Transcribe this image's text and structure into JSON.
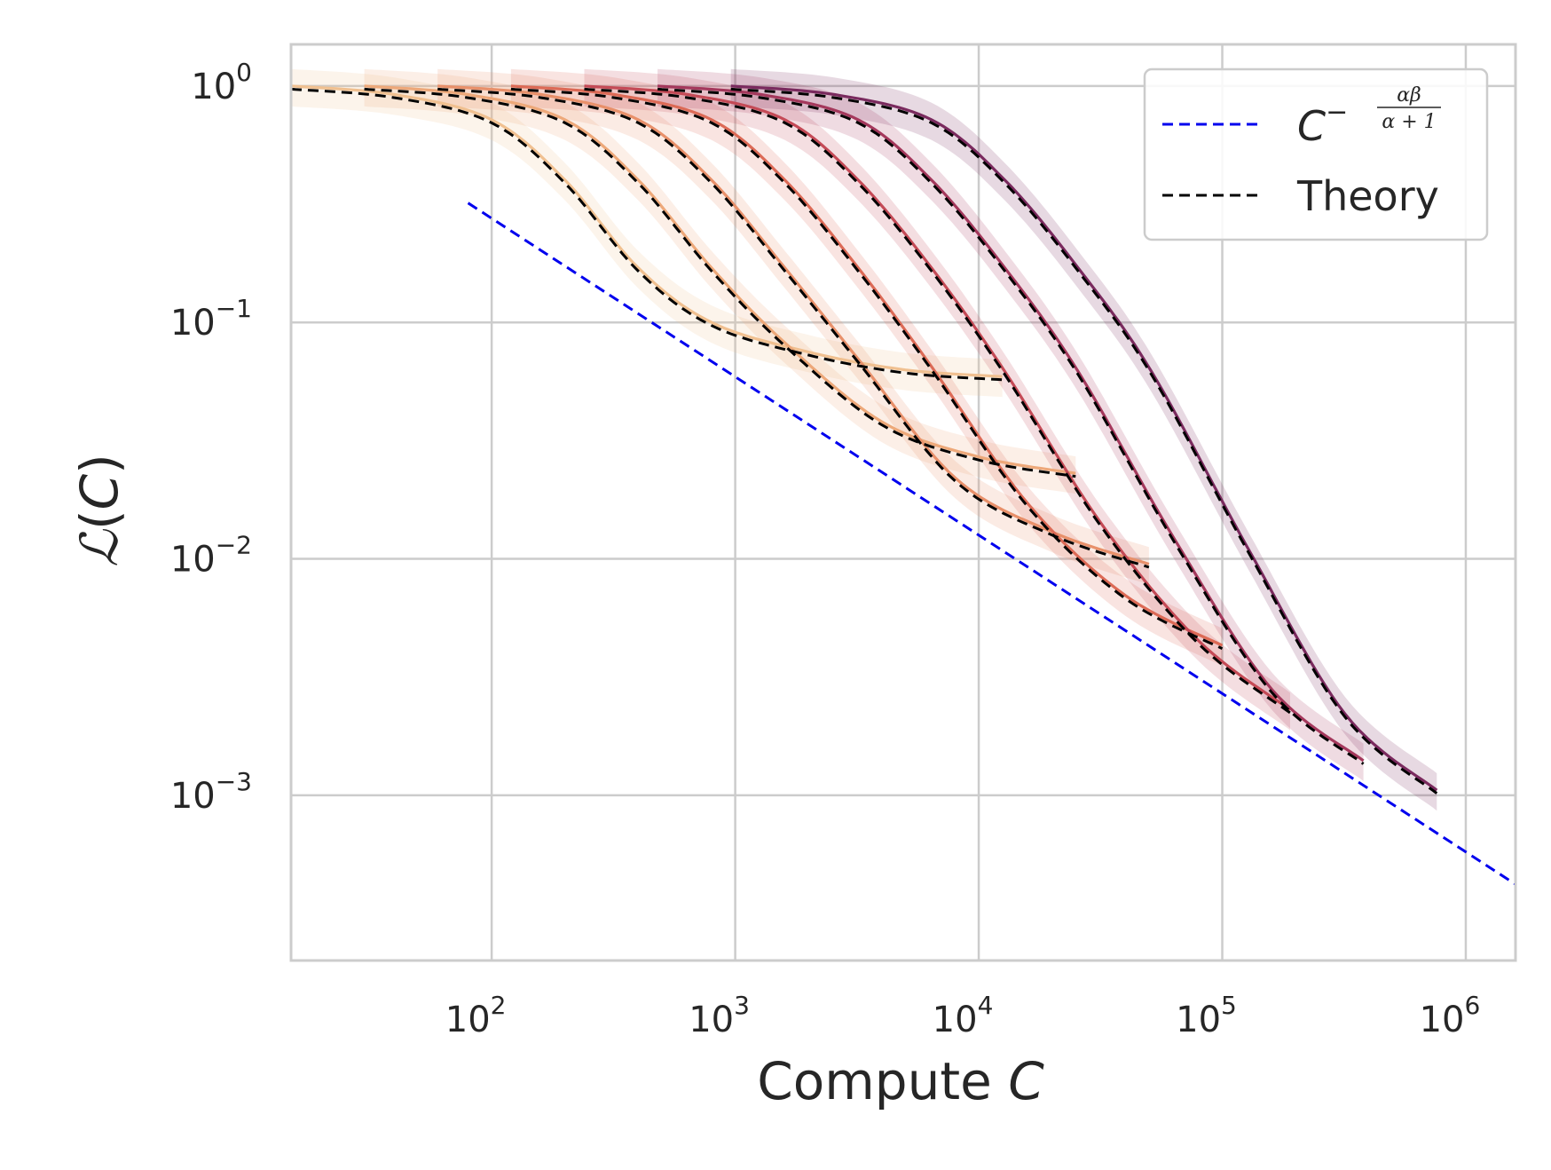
{
  "chart_data": {
    "type": "line",
    "x_scale": "log",
    "y_scale": "log",
    "xlabel": "Compute C",
    "ylabel": "ℒ(C)",
    "xlim": [
      15,
      1600000
    ],
    "ylim": [
      0.0002,
      1.5
    ],
    "grid": true,
    "legend_position": "top-right",
    "x_ticks": [
      {
        "value": 100,
        "base": "10",
        "exp": "2"
      },
      {
        "value": 1000,
        "base": "10",
        "exp": "3"
      },
      {
        "value": 10000,
        "base": "10",
        "exp": "4"
      },
      {
        "value": 100000,
        "base": "10",
        "exp": "5"
      },
      {
        "value": 1000000,
        "base": "10",
        "exp": "6"
      }
    ],
    "y_ticks": [
      {
        "value": 1,
        "base": "10",
        "exp": "0"
      },
      {
        "value": 0.1,
        "base": "10",
        "exp": "−1"
      },
      {
        "value": 0.01,
        "base": "10",
        "exp": "−2"
      },
      {
        "value": 0.001,
        "base": "10",
        "exp": "−3"
      }
    ],
    "legend": [
      {
        "label_base": "C",
        "label_exp_sign": "−",
        "label_num": "αβ",
        "label_den": "α + 1",
        "color": "#0000ee",
        "style": "dashed"
      },
      {
        "label": "Theory",
        "color": "#000000",
        "style": "dashed"
      }
    ],
    "power_law": {
      "color": "#0000ee",
      "x_start": 80,
      "x_end": 1600000,
      "y_at_x_start": 0.32,
      "slope": -0.67
    },
    "runs": [
      {
        "color": "#f0c090",
        "points": [
          [
            15,
            1.0
          ],
          [
            40,
            0.92
          ],
          [
            100,
            0.72
          ],
          [
            200,
            0.4
          ],
          [
            400,
            0.17
          ],
          [
            800,
            0.1
          ],
          [
            2000,
            0.075
          ],
          [
            5000,
            0.063
          ],
          [
            12500,
            0.059
          ]
        ]
      },
      {
        "color": "#eda879",
        "points": [
          [
            30,
            1.0
          ],
          [
            80,
            0.92
          ],
          [
            200,
            0.72
          ],
          [
            400,
            0.4
          ],
          [
            800,
            0.17
          ],
          [
            1600,
            0.082
          ],
          [
            4000,
            0.038
          ],
          [
            10000,
            0.027
          ],
          [
            25000,
            0.023
          ]
        ]
      },
      {
        "color": "#e8906a",
        "points": [
          [
            60,
            1.0
          ],
          [
            160,
            0.92
          ],
          [
            400,
            0.72
          ],
          [
            800,
            0.4
          ],
          [
            1600,
            0.17
          ],
          [
            3200,
            0.07
          ],
          [
            8000,
            0.022
          ],
          [
            20000,
            0.013
          ],
          [
            50000,
            0.0095
          ]
        ]
      },
      {
        "color": "#dc6a56",
        "points": [
          [
            120,
            1.0
          ],
          [
            320,
            0.92
          ],
          [
            800,
            0.72
          ],
          [
            1600,
            0.4
          ],
          [
            3200,
            0.17
          ],
          [
            6400,
            0.065
          ],
          [
            16000,
            0.017
          ],
          [
            40000,
            0.007
          ],
          [
            100000,
            0.0043
          ]
        ]
      },
      {
        "color": "#c44a56",
        "points": [
          [
            240,
            1.0
          ],
          [
            640,
            0.92
          ],
          [
            1600,
            0.72
          ],
          [
            3200,
            0.4
          ],
          [
            6400,
            0.17
          ],
          [
            12800,
            0.062
          ],
          [
            32000,
            0.014
          ],
          [
            80000,
            0.0045
          ],
          [
            190000,
            0.0023
          ]
        ]
      },
      {
        "color": "#a4385c",
        "points": [
          [
            480,
            1.0
          ],
          [
            1280,
            0.92
          ],
          [
            3200,
            0.72
          ],
          [
            6400,
            0.4
          ],
          [
            12800,
            0.17
          ],
          [
            25600,
            0.062
          ],
          [
            64000,
            0.012
          ],
          [
            160000,
            0.0028
          ],
          [
            380000,
            0.0014
          ]
        ]
      },
      {
        "color": "#7a2a5e",
        "points": [
          [
            960,
            1.0
          ],
          [
            2560,
            0.92
          ],
          [
            6400,
            0.72
          ],
          [
            12800,
            0.4
          ],
          [
            25600,
            0.17
          ],
          [
            51200,
            0.062
          ],
          [
            128000,
            0.011
          ],
          [
            320000,
            0.0022
          ],
          [
            760000,
            0.00105
          ]
        ]
      }
    ]
  }
}
